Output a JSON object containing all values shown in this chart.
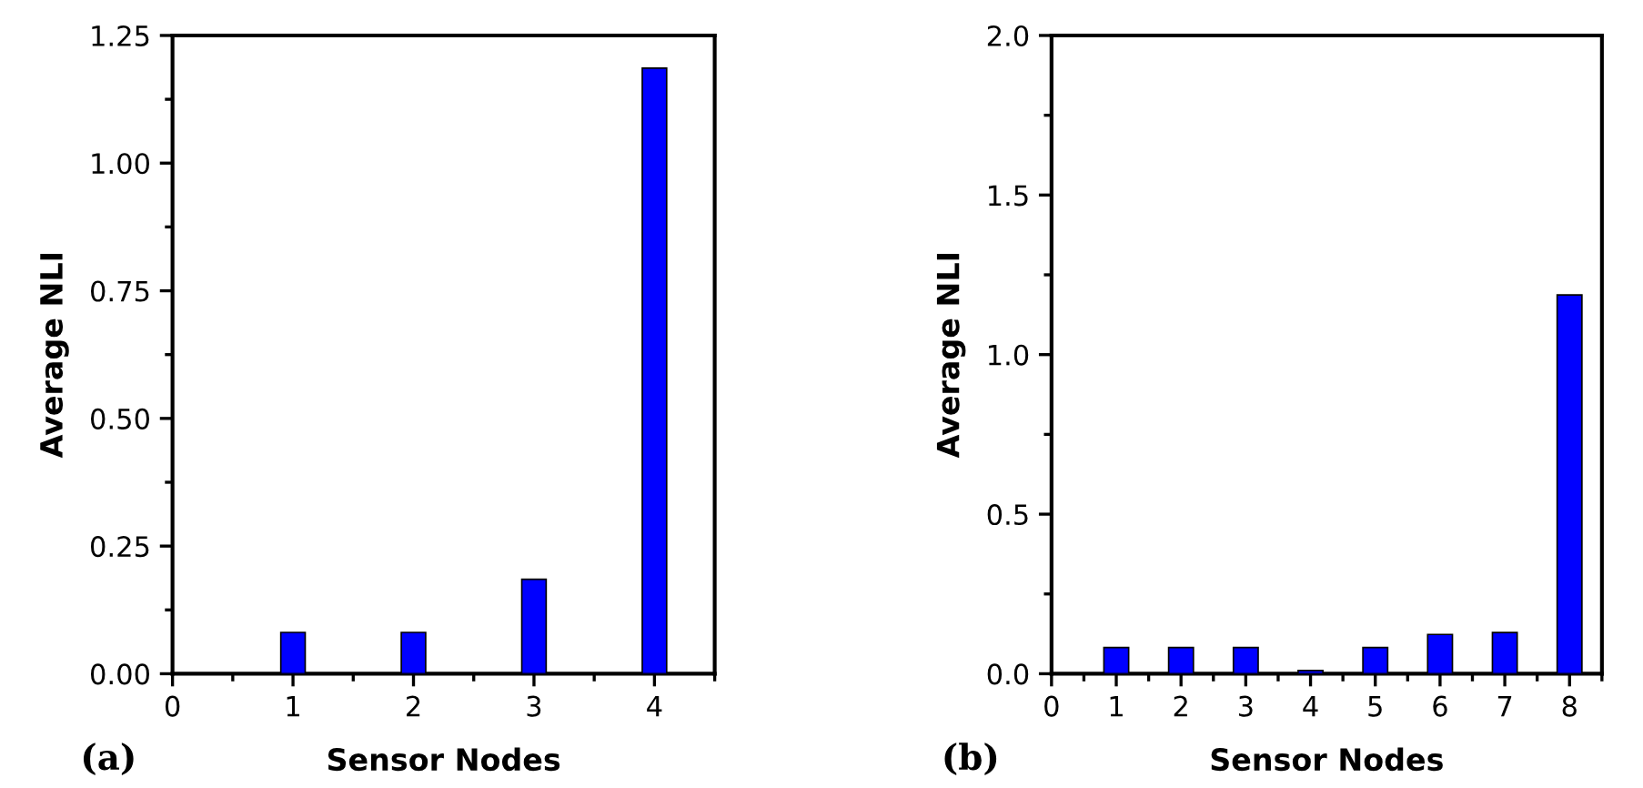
{
  "chart_data": [
    {
      "type": "bar",
      "xlabel": "Sensor Nodes",
      "ylabel": "Average NLI",
      "x": [
        1,
        2,
        3,
        4
      ],
      "values": [
        0.081,
        0.081,
        0.185,
        1.186
      ],
      "color": "#0000ff",
      "xlim": [
        0,
        4.5
      ],
      "xticks": [
        0,
        1,
        2,
        3,
        4
      ],
      "ylim": [
        0,
        1.25
      ],
      "yticks": [
        {
          "value": 0,
          "label": "0.00"
        },
        {
          "value": 0.25,
          "label": "0.25"
        },
        {
          "value": 0.5,
          "label": "0.50"
        },
        {
          "value": 0.75,
          "label": "0.75"
        },
        {
          "value": 1,
          "label": "1.00"
        },
        {
          "value": 1.25,
          "label": "1.25"
        }
      ],
      "grid": false,
      "annotations": [
        "(a)"
      ]
    },
    {
      "type": "bar",
      "xlabel": "Sensor Nodes",
      "ylabel": "Average NLI",
      "x": [
        1,
        2,
        3,
        4,
        5,
        6,
        7,
        8
      ],
      "values": [
        0.082,
        0.082,
        0.082,
        0.01,
        0.082,
        0.123,
        0.129,
        1.187
      ],
      "color": "#0000ff",
      "xlim": [
        0,
        8.5
      ],
      "xticks": [
        0,
        1,
        2,
        3,
        4,
        5,
        6,
        7,
        8
      ],
      "ylim": [
        0,
        2.0
      ],
      "yticks": [
        {
          "value": 0,
          "label": "0.0"
        },
        {
          "value": 0.5,
          "label": "0.5"
        },
        {
          "value": 1,
          "label": "1.0"
        },
        {
          "value": 1.5,
          "label": "1.5"
        },
        {
          "value": 2,
          "label": "2.0"
        }
      ],
      "grid": false,
      "annotations": [
        "(b)"
      ]
    }
  ]
}
